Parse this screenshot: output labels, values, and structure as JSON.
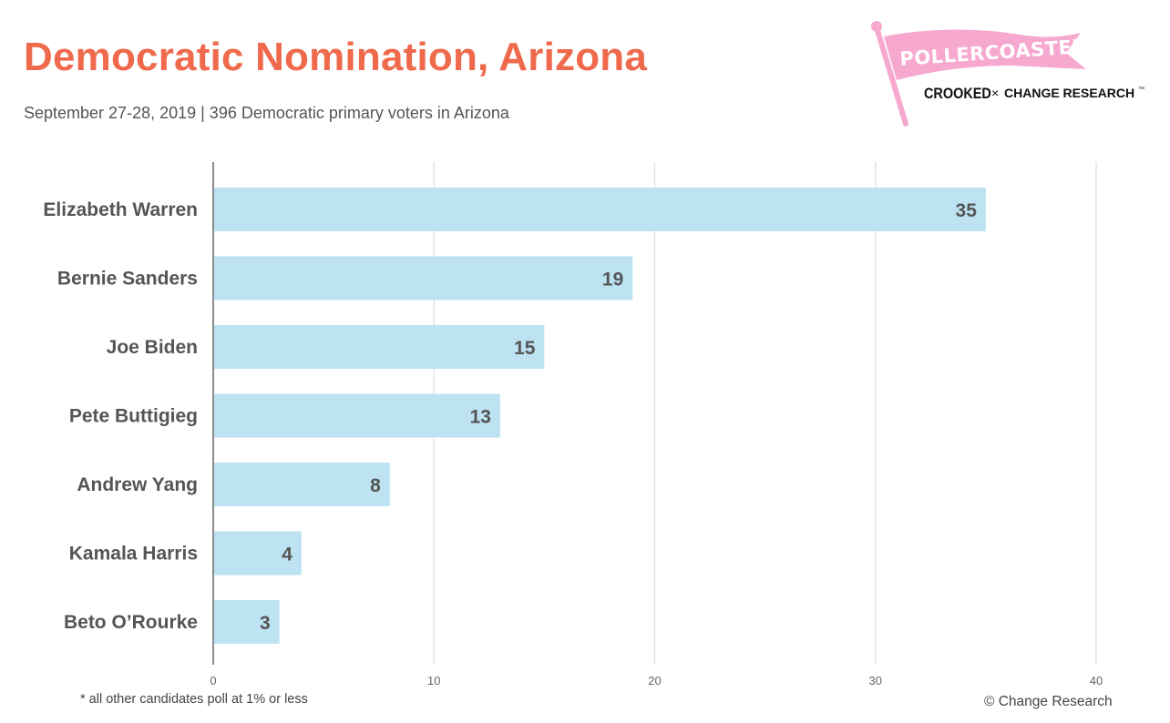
{
  "header": {
    "title": "Democratic Nomination, Arizona",
    "subtitle": "September 27-28, 2019 | 396 Democratic primary voters in Arizona"
  },
  "logo": {
    "flag_text": "POLLERCOASTER",
    "brand_left": "CROOKED",
    "brand_x": "×",
    "brand_right": "CHANGE RESEARCH",
    "trademark": "™"
  },
  "chart_data": {
    "type": "bar",
    "orientation": "horizontal",
    "categories": [
      "Elizabeth Warren",
      "Bernie Sanders",
      "Joe Biden",
      "Pete Buttigieg",
      "Andrew Yang",
      "Kamala Harris",
      "Beto O’Rourke"
    ],
    "values": [
      35,
      19,
      15,
      13,
      8,
      4,
      3
    ],
    "xlim": [
      0,
      40
    ],
    "xticks": [
      0,
      10,
      20,
      30,
      40
    ],
    "grid": true,
    "bar_color": "#bde3f2",
    "value_label_color": "#555555"
  },
  "footer": {
    "footnote": "* all other candidates poll at 1% or less",
    "credit": "© Change Research"
  },
  "colors": {
    "title": "#ef6a4c",
    "flag": "#f7a8cf",
    "text": "#555555",
    "grid": "#dddddd"
  }
}
